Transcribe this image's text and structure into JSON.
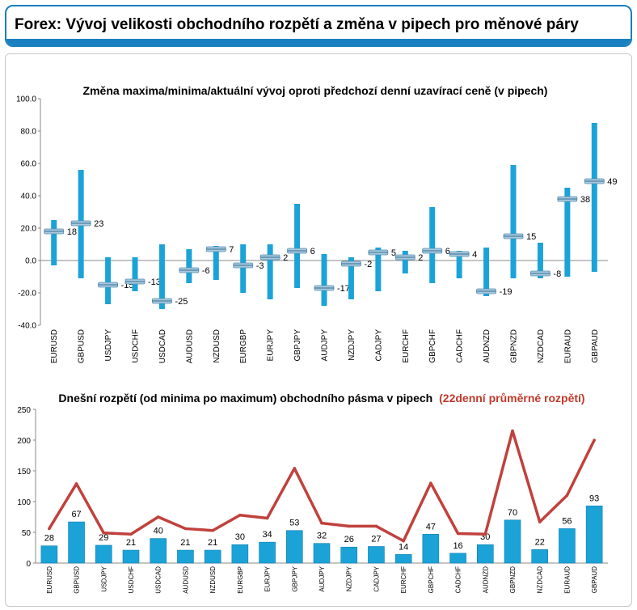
{
  "header": {
    "title": "Forex: Vývoj velikosti obchodního rozpětí a změna v pipech pro měnové páry"
  },
  "chart_data": [
    {
      "type": "range",
      "title": "Změna maxima/minima/aktuální vývoj oproti předchozí denní uzavírací ceně (v pipech)",
      "categories": [
        "EURUSD",
        "GBPUSD",
        "USDJPY",
        "USDCHF",
        "USDCAD",
        "AUDUSD",
        "NZDUSD",
        "EURGBP",
        "EURJPY",
        "GBPJPY",
        "AUDJPY",
        "NZDJPY",
        "CADJPY",
        "EURCHF",
        "GBPCHF",
        "CADCHF",
        "AUDNZD",
        "GBPNZD",
        "NZDCAD",
        "EURAUD",
        "GBPAUD"
      ],
      "high": [
        25,
        56,
        2,
        2,
        10,
        7,
        9,
        10,
        10,
        35,
        4,
        2,
        8,
        6,
        33,
        6,
        8,
        59,
        11,
        45,
        85
      ],
      "low": [
        -3,
        -11,
        -27,
        -19,
        -30,
        -14,
        -12,
        -20,
        -24,
        -17,
        -28,
        -24,
        -19,
        -8,
        -14,
        -11,
        -22,
        -11,
        -11,
        -10,
        -7
      ],
      "current": [
        18,
        23,
        -15,
        -13,
        -25,
        -6,
        7,
        -3,
        2,
        6,
        -17,
        -2,
        5,
        2,
        6,
        4,
        -19,
        15,
        -8,
        38,
        49
      ],
      "ylim": [
        -40,
        100
      ],
      "yticks": [
        "-40.0",
        "-20.0",
        "0.0",
        "20.0",
        "40.0",
        "60.0",
        "80.0",
        "100.0"
      ],
      "grid": false,
      "colors": {
        "bar": "#1ba3d8",
        "marker": "#a9c9dd"
      }
    },
    {
      "type": "bar",
      "title": "Dnešní rozpětí (od minima po maximum) obchodního pásma v pipech",
      "title_suffix": "(22denní průměrné rozpětí)",
      "categories": [
        "EURUSD",
        "GBPUSD",
        "USDJPY",
        "USDCHF",
        "USDCAD",
        "AUDUSD",
        "NZDUSD",
        "EURGBP",
        "EURJPY",
        "GBPJPY",
        "AUDJPY",
        "NZDJPY",
        "CADJPY",
        "EURCHF",
        "GBPCHF",
        "CADCHF",
        "AUDNZD",
        "GBPNZD",
        "NZDCAD",
        "EURAUD",
        "GBPAUD"
      ],
      "series": [
        {
          "values": [
            28,
            67,
            29,
            21,
            40,
            21,
            21,
            30,
            34,
            53,
            32,
            26,
            27,
            14,
            47,
            16,
            30,
            70,
            22,
            56,
            93
          ]
        },
        {
          "values": [
            56,
            129,
            49,
            47,
            75,
            56,
            53,
            78,
            73,
            154,
            65,
            60,
            60,
            36,
            130,
            48,
            47,
            215,
            67,
            110,
            200
          ]
        }
      ],
      "ylim": [
        0,
        250
      ],
      "yticks": [
        "0",
        "50",
        "100",
        "150",
        "200",
        "250"
      ],
      "grid": false,
      "colors": {
        "bar": "#1ba3d8",
        "line": "#c0413d",
        "title_suffix": "#c0392b"
      }
    }
  ]
}
